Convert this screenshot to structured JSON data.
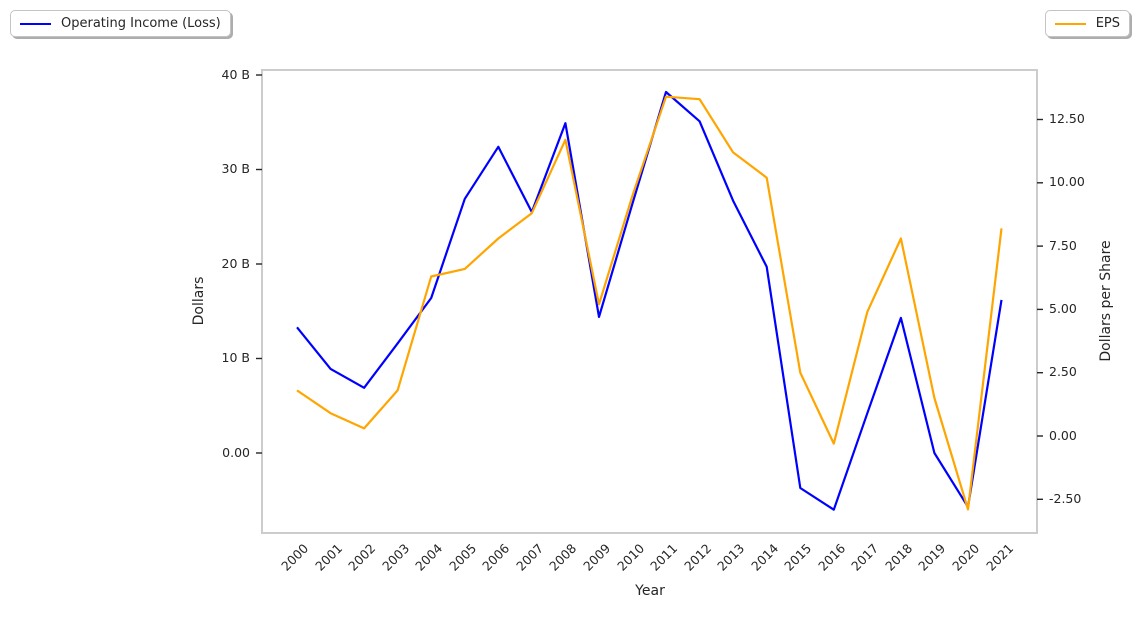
{
  "figure": {
    "background": "#ffffff",
    "spine_color": "#cccccc",
    "text_color": "#262626"
  },
  "legend_left": {
    "label": "Operating Income (Loss)",
    "color": "#0000ff"
  },
  "legend_right": {
    "label": "EPS",
    "color": "#ffa500"
  },
  "chart_data": {
    "type": "line",
    "title": "",
    "xlabel": "Year",
    "x": [
      2000,
      2001,
      2002,
      2003,
      2004,
      2005,
      2006,
      2007,
      2008,
      2009,
      2010,
      2011,
      2012,
      2013,
      2014,
      2015,
      2016,
      2017,
      2018,
      2019,
      2020,
      2021
    ],
    "series": [
      {
        "name": "Operating Income (Loss)",
        "axis": "left",
        "color": "#0000ff",
        "values": [
          13.3,
          8.9,
          6.9,
          11.6,
          16.4,
          26.9,
          32.4,
          25.5,
          34.9,
          14.4,
          26.4,
          38.2,
          35.1,
          26.7,
          19.7,
          -3.7,
          -6.0,
          4.2,
          14.3,
          0.0,
          -5.7,
          16.2
        ]
      },
      {
        "name": "EPS",
        "axis": "right",
        "color": "#ffa500",
        "values": [
          1.8,
          0.9,
          0.3,
          1.8,
          6.3,
          6.6,
          7.8,
          8.8,
          11.7,
          5.2,
          9.5,
          13.4,
          13.3,
          11.2,
          10.2,
          2.5,
          -0.3,
          4.9,
          7.8,
          1.5,
          -2.9,
          8.2
        ]
      }
    ],
    "left_axis": {
      "label": "Dollars",
      "ticks": [
        40,
        30,
        20,
        10,
        0
      ],
      "tick_labels": [
        "40 B",
        "30 B",
        "20 B",
        "10 B",
        "0.00"
      ],
      "range_approx": [
        -8.5,
        40.5
      ],
      "units": "billions of dollars"
    },
    "right_axis": {
      "label": "Dollars per Share",
      "ticks": [
        12.5,
        10,
        7.5,
        5,
        2.5,
        0,
        -2.5
      ],
      "tick_labels": [
        "12.50",
        "10.00",
        "7.50",
        "5.00",
        "2.50",
        "0.00",
        "-2.50"
      ],
      "range_approx": [
        -3.8,
        14.5
      ]
    },
    "grid": false,
    "legend_position": "outside-top-left and outside-top-right"
  }
}
